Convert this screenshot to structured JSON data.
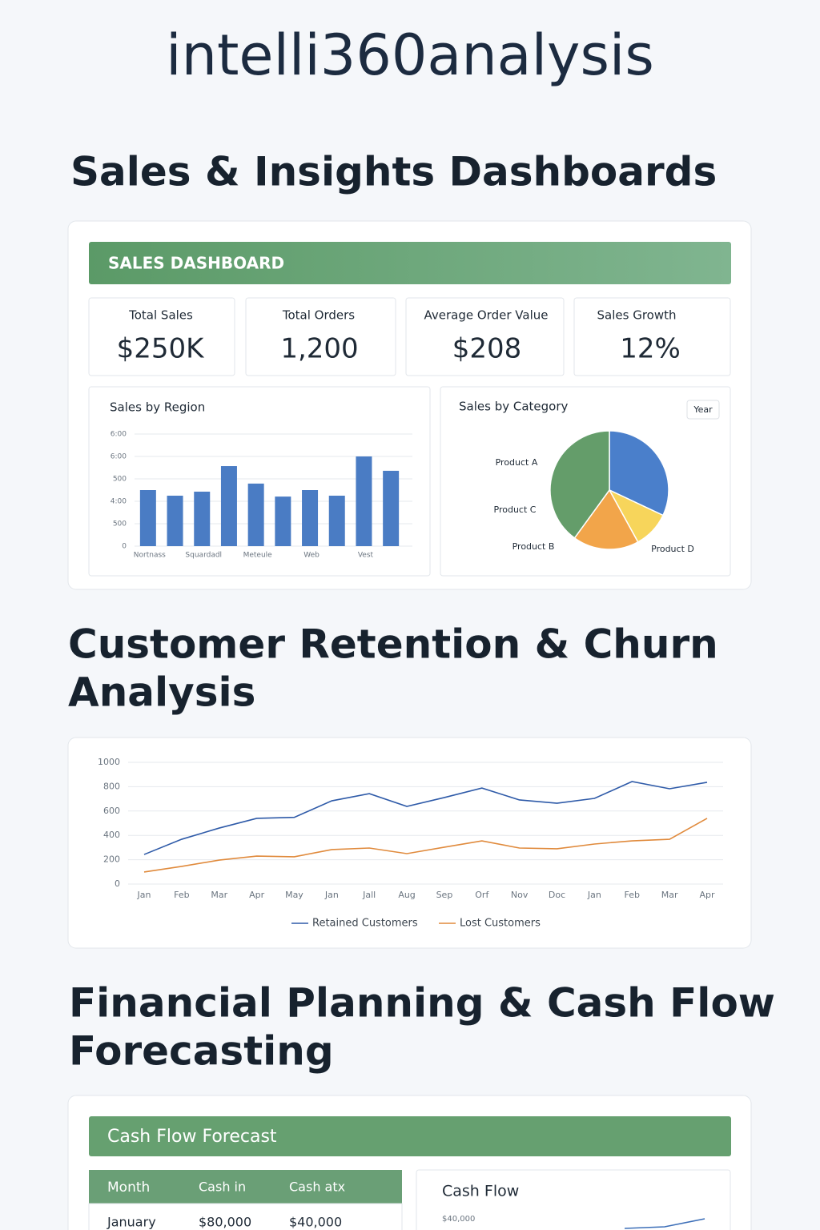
{
  "header": {
    "brand": "intelli360analysis"
  },
  "sections": [
    {
      "title_lines": [
        "Sales & Insights Dashboards"
      ]
    },
    {
      "title_lines": [
        "Customer Retention & Churn",
        "Analysis"
      ]
    },
    {
      "title_lines": [
        "Financial Planning & Cash Flow",
        "Forecasting"
      ]
    }
  ],
  "sales_dashboard": {
    "banner": "SALES DASHBOARD",
    "kpis": [
      {
        "label": "Total Sales",
        "value": "$250K"
      },
      {
        "label": "Total Orders",
        "value": "1,200"
      },
      {
        "label": "Average Order Value",
        "value": "$208"
      },
      {
        "label": "Sales Growth",
        "value": "12%"
      }
    ],
    "year_button": "Year"
  },
  "cash_flow": {
    "banner": "Cash Flow Forecast",
    "table": {
      "header": [
        "Month",
        "Cash in",
        "Cash atx"
      ],
      "rows": [
        [
          "January",
          "$80,000",
          "$40,000"
        ]
      ]
    }
  },
  "chart_data": [
    {
      "type": "bar",
      "title": "Sales by Region",
      "categories": [
        "Nortnass",
        null,
        "Squardadl",
        null,
        "Meteule",
        null,
        "Web",
        null,
        "Vest",
        null
      ],
      "values": [
        250,
        225,
        243,
        357,
        279,
        221,
        250,
        225,
        400,
        336
      ],
      "color": "#4a7cc4",
      "ylim": [
        0,
        500
      ],
      "yticks": [
        0,
        {
          "value": 100,
          "label": "500"
        },
        {
          "value": 200,
          "label": "4:00"
        },
        {
          "value": 300,
          "label": "500"
        },
        {
          "value": 400,
          "label": "6:00"
        },
        {
          "value": 500,
          "label": "6:00"
        }
      ],
      "grid": true
    },
    {
      "type": "pie",
      "title": "Sales by Category",
      "categories": [
        "Product C",
        "Product D",
        "Product B",
        "Product A"
      ],
      "values": [
        32,
        10,
        18,
        40
      ],
      "colors": [
        "#4a7fcb",
        "#f7d55b",
        "#f2a54a",
        "#649d6a"
      ]
    },
    {
      "type": "line",
      "categories": [
        "Jan",
        "Feb",
        "Mar",
        "Apr",
        "May",
        "Jan",
        "Jall",
        "Aug",
        "Sep",
        "Orf",
        "Nov",
        "Doc",
        "Jan",
        "Feb",
        "Mar",
        "Apr"
      ],
      "series": [
        {
          "name": "Retained Customers",
          "color": "#2e5aa8",
          "values": [
            243,
            368,
            460,
            540,
            548,
            684,
            743,
            638,
            711,
            789,
            691,
            664,
            704,
            842,
            783,
            836
          ]
        },
        {
          "name": "Lost Customers",
          "color": "#e08a3c",
          "values": [
            99,
            145,
            197,
            230,
            224,
            283,
            296,
            250,
            303,
            355,
            296,
            290,
            329,
            355,
            368,
            540
          ]
        }
      ],
      "ylim": [
        0,
        1000
      ],
      "yticks": [
        0,
        200,
        400,
        600,
        800,
        1000
      ],
      "grid": true,
      "legend": "bottom"
    },
    {
      "type": "line",
      "title": "Cash Flow",
      "series": [
        {
          "color": "#3d6fb8",
          "values": [
            38800,
            39000,
            40000
          ]
        }
      ],
      "ylim": [
        30000,
        40000
      ],
      "yticks": [
        {
          "value": 40000,
          "label": "$40,000"
        }
      ],
      "grid": false
    }
  ]
}
